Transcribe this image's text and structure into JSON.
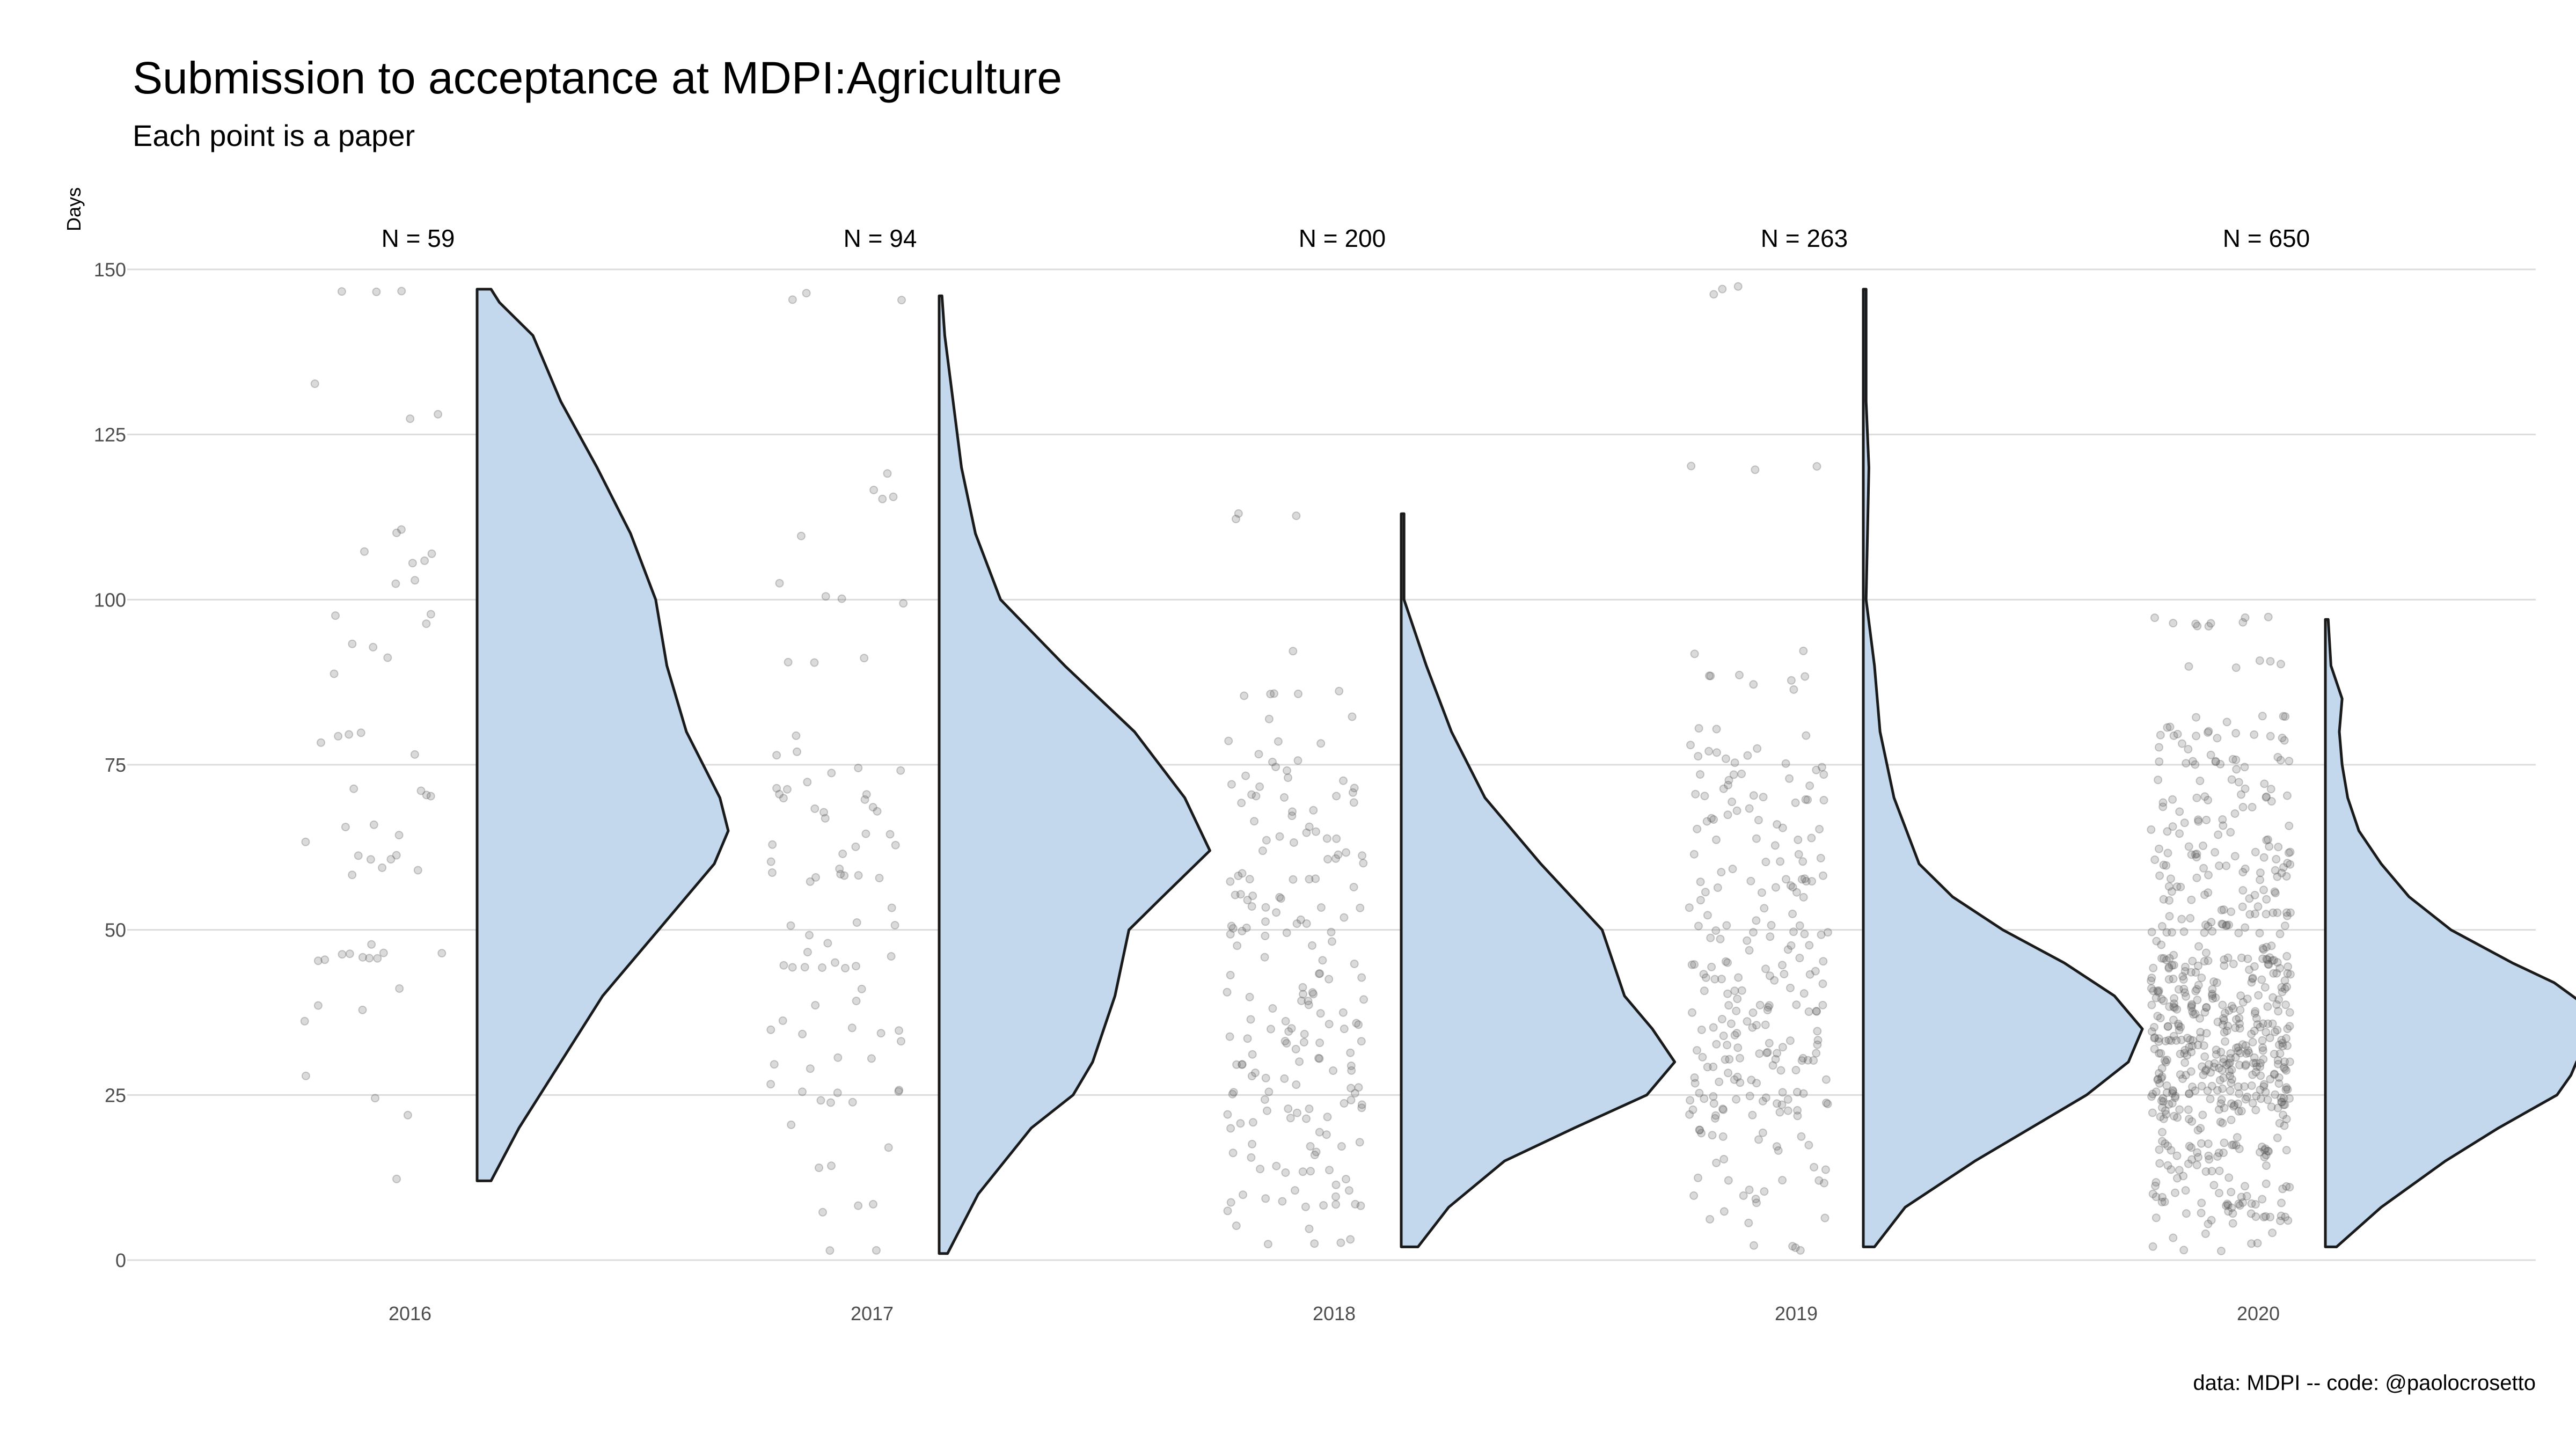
{
  "chart_data": {
    "type": "raincloud",
    "title": "Submission to acceptance at MDPI:Agriculture",
    "subtitle": "Each point is a paper",
    "ylabel": "Days",
    "xlabel": "",
    "caption": "data: MDPI -- code: @paolocrosetto",
    "ylim": [
      0,
      150
    ],
    "yticks": [
      0,
      25,
      50,
      75,
      100,
      125,
      150
    ],
    "grid": true,
    "colors": {
      "fill": "#c3d8ec",
      "stroke": "#1a1a1a",
      "point": "#555555",
      "grid": "#dcdcdc"
    },
    "categories": [
      "2016",
      "2017",
      "2018",
      "2019",
      "2020"
    ],
    "groups": [
      {
        "year": "2016",
        "n_label": "N = 59",
        "n": 59,
        "min": 12,
        "max": 147,
        "density": [
          [
            12,
            0.05
          ],
          [
            20,
            0.15
          ],
          [
            30,
            0.3
          ],
          [
            40,
            0.45
          ],
          [
            50,
            0.65
          ],
          [
            60,
            0.85
          ],
          [
            65,
            0.9
          ],
          [
            70,
            0.87
          ],
          [
            80,
            0.75
          ],
          [
            90,
            0.68
          ],
          [
            100,
            0.64
          ],
          [
            110,
            0.55
          ],
          [
            120,
            0.43
          ],
          [
            130,
            0.3
          ],
          [
            140,
            0.2
          ],
          [
            145,
            0.08
          ],
          [
            147,
            0.05
          ]
        ],
        "sample": [
          147,
          142,
          137,
          135,
          132,
          133,
          128,
          119,
          116,
          110,
          110,
          107,
          106,
          103,
          100,
          98,
          97,
          93,
          92,
          88,
          80,
          79,
          77,
          76,
          75,
          71,
          70,
          70,
          69,
          66,
          65,
          65,
          64,
          63,
          61,
          61,
          60,
          59,
          58,
          56,
          55,
          52,
          47,
          46,
          46,
          45,
          41,
          38,
          36,
          33,
          28,
          25,
          22,
          12
        ]
      },
      {
        "year": "2017",
        "n_label": "N = 94",
        "n": 94,
        "min": 1,
        "max": 146,
        "density": [
          [
            1,
            0.03
          ],
          [
            10,
            0.14
          ],
          [
            20,
            0.33
          ],
          [
            25,
            0.48
          ],
          [
            30,
            0.55
          ],
          [
            40,
            0.63
          ],
          [
            50,
            0.68
          ],
          [
            55,
            0.8
          ],
          [
            62,
            0.97
          ],
          [
            70,
            0.88
          ],
          [
            80,
            0.7
          ],
          [
            90,
            0.45
          ],
          [
            100,
            0.22
          ],
          [
            110,
            0.13
          ],
          [
            120,
            0.08
          ],
          [
            130,
            0.05
          ],
          [
            140,
            0.02
          ],
          [
            146,
            0.01
          ]
        ],
        "sample": [
          146,
          127,
          119,
          117,
          116,
          110,
          103,
          102,
          100,
          91,
          90,
          89,
          85,
          83,
          82,
          80,
          77,
          75,
          74,
          72,
          71,
          70,
          69,
          68,
          68,
          67,
          66,
          65,
          65,
          64,
          63,
          62,
          61,
          60,
          59,
          59,
          58,
          58,
          57,
          56,
          55,
          54,
          53,
          52,
          51,
          50,
          50,
          49,
          48,
          47,
          46,
          45,
          44,
          42,
          41,
          40,
          38,
          37,
          35,
          34,
          33,
          31,
          30,
          30,
          29,
          28,
          27,
          26,
          25,
          24,
          20,
          17,
          14,
          8,
          1
        ]
      },
      {
        "year": "2018",
        "n_label": "N = 200",
        "n": 200,
        "min": 2,
        "max": 113,
        "density": [
          [
            2,
            0.06
          ],
          [
            8,
            0.17
          ],
          [
            15,
            0.37
          ],
          [
            20,
            0.62
          ],
          [
            25,
            0.88
          ],
          [
            30,
            0.98
          ],
          [
            35,
            0.9
          ],
          [
            40,
            0.8
          ],
          [
            50,
            0.72
          ],
          [
            60,
            0.5
          ],
          [
            70,
            0.3
          ],
          [
            80,
            0.18
          ],
          [
            90,
            0.09
          ],
          [
            100,
            0.01
          ],
          [
            113,
            0.01
          ]
        ],
        "sample": [
          113,
          93,
          86,
          85,
          82,
          79,
          78,
          76,
          74,
          73,
          72,
          71,
          70,
          70,
          69,
          68,
          68,
          67,
          66,
          65,
          65,
          64,
          63,
          62,
          62,
          61,
          60,
          59,
          58,
          58,
          57,
          56,
          55,
          55,
          54,
          53,
          52,
          52,
          51,
          50,
          50,
          49,
          48,
          47,
          46,
          46,
          45,
          44,
          43,
          43,
          42,
          41,
          41,
          40,
          40,
          39,
          38,
          38,
          37,
          36,
          36,
          35,
          35,
          34,
          33,
          33,
          32,
          31,
          31,
          30,
          30,
          29,
          28,
          28,
          27,
          26,
          26,
          25,
          25,
          24,
          23,
          23,
          22,
          21,
          20,
          20,
          19,
          18,
          17,
          16,
          15,
          14,
          13,
          12,
          11,
          10,
          9,
          8,
          6,
          5,
          4,
          3,
          2,
          2
        ]
      },
      {
        "year": "2019",
        "n_label": "N = 263",
        "n": 263,
        "min": 2,
        "max": 147,
        "density": [
          [
            2,
            0.04
          ],
          [
            8,
            0.15
          ],
          [
            15,
            0.4
          ],
          [
            20,
            0.6
          ],
          [
            25,
            0.8
          ],
          [
            30,
            0.95
          ],
          [
            35,
            1.0
          ],
          [
            40,
            0.9
          ],
          [
            45,
            0.72
          ],
          [
            50,
            0.5
          ],
          [
            55,
            0.32
          ],
          [
            60,
            0.2
          ],
          [
            70,
            0.11
          ],
          [
            80,
            0.06
          ],
          [
            90,
            0.04
          ],
          [
            100,
            0.01
          ],
          [
            120,
            0.02
          ],
          [
            130,
            0.01
          ],
          [
            147,
            0.01
          ]
        ],
        "sample": [
          147,
          120,
          92,
          88,
          87,
          80,
          78,
          77,
          76,
          75,
          73,
          72,
          70,
          69,
          68,
          67,
          66,
          65,
          64,
          63,
          62,
          61,
          60,
          59,
          58,
          57,
          56,
          55,
          54,
          53,
          52,
          51,
          50,
          50,
          49,
          48,
          47,
          46,
          45,
          45,
          44,
          43,
          42,
          41,
          40,
          40,
          39,
          38,
          38,
          37,
          36,
          36,
          35,
          34,
          34,
          33,
          33,
          32,
          31,
          31,
          30,
          30,
          29,
          28,
          28,
          27,
          27,
          26,
          25,
          25,
          24,
          24,
          23,
          22,
          21,
          20,
          19,
          18,
          17,
          16,
          15,
          14,
          12,
          10,
          8,
          6,
          4,
          2
        ]
      },
      {
        "year": "2020",
        "n_label": "N = 650",
        "n": 650,
        "min": 2,
        "max": 97,
        "density": [
          [
            2,
            0.04
          ],
          [
            8,
            0.2
          ],
          [
            15,
            0.43
          ],
          [
            20,
            0.62
          ],
          [
            25,
            0.83
          ],
          [
            28,
            0.88
          ],
          [
            30,
            0.9
          ],
          [
            35,
            0.97
          ],
          [
            38,
            0.95
          ],
          [
            42,
            0.82
          ],
          [
            45,
            0.67
          ],
          [
            50,
            0.45
          ],
          [
            55,
            0.3
          ],
          [
            60,
            0.2
          ],
          [
            65,
            0.12
          ],
          [
            70,
            0.08
          ],
          [
            75,
            0.06
          ],
          [
            80,
            0.05
          ],
          [
            85,
            0.06
          ],
          [
            90,
            0.02
          ],
          [
            97,
            0.01
          ]
        ],
        "sample": [
          97,
          96,
          90,
          82,
          80,
          79,
          77,
          76,
          75,
          72,
          70,
          68,
          66,
          65,
          63,
          62,
          61,
          60,
          59,
          58,
          57,
          56,
          55,
          54,
          53,
          52,
          51,
          50,
          50,
          49,
          48,
          47,
          46,
          46,
          45,
          44,
          44,
          43,
          42,
          42,
          41,
          41,
          40,
          40,
          39,
          39,
          38,
          38,
          37,
          37,
          36,
          36,
          35,
          35,
          35,
          34,
          34,
          33,
          33,
          33,
          32,
          32,
          31,
          31,
          30,
          30,
          30,
          29,
          29,
          28,
          28,
          27,
          27,
          26,
          26,
          25,
          25,
          24,
          24,
          23,
          22,
          22,
          21,
          20,
          19,
          18,
          17,
          16,
          15,
          14,
          13,
          12,
          11,
          10,
          9,
          8,
          7,
          6,
          4,
          2
        ]
      }
    ]
  }
}
